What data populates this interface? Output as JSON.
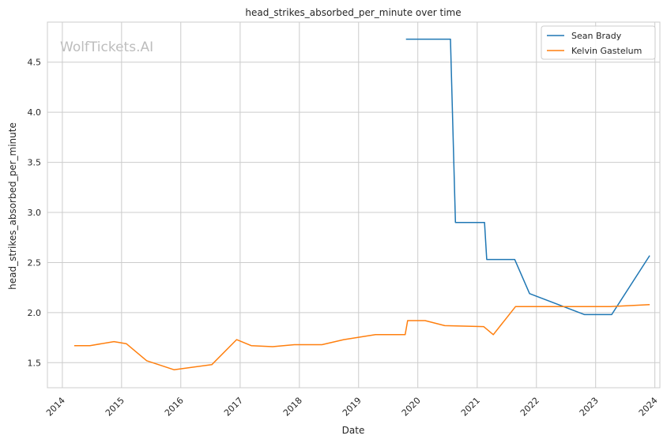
{
  "chart_data": {
    "type": "line",
    "title": "head_strikes_absorbed_per_minute over time",
    "xlabel": "Date",
    "ylabel": "head_strikes_absorbed_per_minute",
    "watermark": "WolfTickets.AI",
    "x_axis": "date",
    "xlim": [
      "2013-10-01",
      "2024-02-01"
    ],
    "ylim": [
      1.25,
      4.9
    ],
    "x_ticks": [
      {
        "label": "2014",
        "date": "2014-01-01"
      },
      {
        "label": "2015",
        "date": "2015-01-01"
      },
      {
        "label": "2016",
        "date": "2016-01-01"
      },
      {
        "label": "2017",
        "date": "2017-01-01"
      },
      {
        "label": "2018",
        "date": "2018-01-01"
      },
      {
        "label": "2019",
        "date": "2019-01-01"
      },
      {
        "label": "2020",
        "date": "2020-01-01"
      },
      {
        "label": "2021",
        "date": "2021-01-01"
      },
      {
        "label": "2022",
        "date": "2022-01-01"
      },
      {
        "label": "2023",
        "date": "2023-01-01"
      },
      {
        "label": "2024",
        "date": "2024-01-01"
      }
    ],
    "y_ticks": [
      1.5,
      2.0,
      2.5,
      3.0,
      3.5,
      4.0,
      4.5
    ],
    "grid": true,
    "legend_position": "top-right",
    "series": [
      {
        "name": "Sean Brady",
        "color": "#1f77b4",
        "points": [
          [
            "2019-10-20",
            4.73
          ],
          [
            "2020-07-20",
            4.73
          ],
          [
            "2020-08-20",
            2.9
          ],
          [
            "2021-02-15",
            2.9
          ],
          [
            "2021-03-01",
            2.53
          ],
          [
            "2021-08-20",
            2.53
          ],
          [
            "2021-11-20",
            2.19
          ],
          [
            "2022-10-25",
            1.98
          ],
          [
            "2023-04-10",
            1.98
          ],
          [
            "2023-11-30",
            2.57
          ]
        ]
      },
      {
        "name": "Kelvin Gastelum",
        "color": "#ff7f0e",
        "points": [
          [
            "2014-03-15",
            1.67
          ],
          [
            "2014-06-20",
            1.67
          ],
          [
            "2014-11-15",
            1.71
          ],
          [
            "2015-01-30",
            1.69
          ],
          [
            "2015-06-05",
            1.52
          ],
          [
            "2015-11-20",
            1.43
          ],
          [
            "2016-07-10",
            1.48
          ],
          [
            "2016-12-10",
            1.73
          ],
          [
            "2017-03-10",
            1.67
          ],
          [
            "2017-07-20",
            1.66
          ],
          [
            "2017-12-01",
            1.68
          ],
          [
            "2018-05-20",
            1.68
          ],
          [
            "2018-10-01",
            1.73
          ],
          [
            "2019-04-15",
            1.78
          ],
          [
            "2019-10-15",
            1.78
          ],
          [
            "2019-10-30",
            1.92
          ],
          [
            "2020-02-15",
            1.92
          ],
          [
            "2020-06-15",
            1.87
          ],
          [
            "2021-02-10",
            1.86
          ],
          [
            "2021-04-10",
            1.78
          ],
          [
            "2021-08-25",
            2.06
          ],
          [
            "2022-11-01",
            2.06
          ],
          [
            "2023-04-01",
            2.06
          ],
          [
            "2023-11-30",
            2.08
          ]
        ]
      }
    ]
  }
}
